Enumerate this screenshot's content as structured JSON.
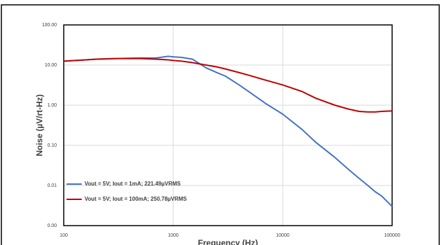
{
  "chart_data": {
    "type": "line",
    "x_label": "Frequency (Hz)",
    "y_label": "Noise (µV/rt-Hz)",
    "x_log": true,
    "y_log": true,
    "xlim": [
      100,
      100000
    ],
    "xticks": [
      100,
      1000,
      10000,
      100000
    ],
    "ylim": [
      0.001,
      100
    ],
    "yticks": [
      {
        "value": 0.001,
        "label": "0.00"
      },
      {
        "value": 0.01,
        "label": "0.01"
      },
      {
        "value": 0.1,
        "label": "0.10"
      },
      {
        "value": 1,
        "label": "1.00"
      },
      {
        "value": 10,
        "label": "10.00"
      },
      {
        "value": 100,
        "label": "100.00"
      }
    ],
    "grid": true,
    "legend": "lower left",
    "x": [
      100,
      200,
      300,
      500,
      700,
      900,
      1000,
      1200,
      1500,
      2000,
      2500,
      3000,
      4000,
      5000,
      7000,
      10000,
      15000,
      20000,
      30000,
      40000,
      50000,
      60000,
      70000,
      80000,
      100000
    ],
    "series": [
      {
        "name": "Vout = 5V; Iout = 1mA; 221.49µVRMS",
        "color": "#4472c4",
        "values": [
          12.5,
          14,
          14.5,
          15,
          15,
          16.5,
          16,
          15.5,
          14,
          8.5,
          6.5,
          5.3,
          3.2,
          2.1,
          1.1,
          0.6,
          0.25,
          0.12,
          0.05,
          0.025,
          0.015,
          0.01,
          0.007,
          0.0055,
          0.003
        ]
      },
      {
        "name": "Vout = 5V; Iout = 100mA; 250.78µVRMS",
        "color": "#c00000",
        "values": [
          12.5,
          14,
          14.5,
          14.5,
          14,
          13.5,
          13,
          12.5,
          11.5,
          10,
          9,
          8,
          6.5,
          5.5,
          4.2,
          3.2,
          2.2,
          1.5,
          1,
          0.8,
          0.7,
          0.68,
          0.68,
          0.7,
          0.72
        ]
      }
    ]
  }
}
